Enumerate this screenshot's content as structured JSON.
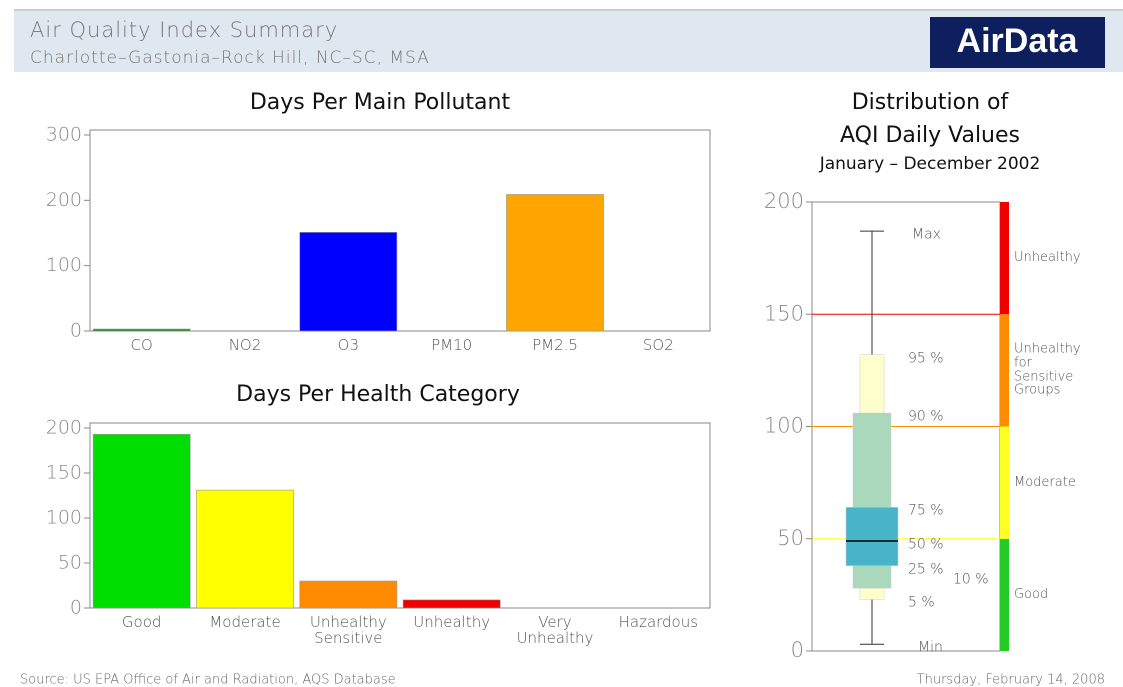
{
  "header": {
    "title": "Air Quality Index Summary",
    "subtitle": "Charlotte–Gastonia–Rock Hill, NC–SC, MSA",
    "logo": "AirData"
  },
  "footer": {
    "source": "Source: US EPA Office of Air and Radiation, AQS Database",
    "date": "Thursday, February 14, 2008"
  },
  "chart_data": [
    {
      "type": "bar",
      "title": "Days Per Main Pollutant",
      "categories": [
        "CO",
        "NO2",
        "O3",
        "PM10",
        "PM2.5",
        "SO2"
      ],
      "values": [
        3,
        0,
        151,
        0,
        209,
        0
      ],
      "colors": [
        "#1f8f1f",
        "#1f8f1f",
        "#0000ff",
        "#808080",
        "#ffa500",
        "#808080"
      ],
      "ylim": [
        0,
        300
      ],
      "yticks": [
        0,
        100,
        200,
        300
      ]
    },
    {
      "type": "bar",
      "title": "Days Per Health Category",
      "categories": [
        "Good",
        "Moderate",
        "Unhealthy\nSensitive",
        "Unhealthy",
        "Very\nUnhealthy",
        "Hazardous"
      ],
      "values": [
        193,
        131,
        30,
        9,
        0,
        0
      ],
      "colors": [
        "#00dd00",
        "#ffff00",
        "#ff8c00",
        "#ee0000",
        "#99004c",
        "#7e0023"
      ],
      "ylim": [
        0,
        200
      ],
      "yticks": [
        0,
        50,
        100,
        150,
        200
      ]
    },
    {
      "type": "box",
      "title": [
        "Distribution of",
        "AQI Daily Values"
      ],
      "subtitle": "January – December 2002",
      "ylim": [
        0,
        200
      ],
      "yticks": [
        0,
        50,
        100,
        150,
        200
      ],
      "stats": {
        "max": {
          "label": "Max",
          "value": 187
        },
        "p95": {
          "label": "95 %",
          "value": 132
        },
        "p90": {
          "label": "90 %",
          "value": 106
        },
        "p75": {
          "label": "75 %",
          "value": 64
        },
        "p50": {
          "label": "50 %",
          "value": 49
        },
        "p25": {
          "label": "25 %",
          "value": 38
        },
        "p10": {
          "label": "10 %",
          "value": 28
        },
        "p5": {
          "label": "5 %",
          "value": 23
        },
        "min": {
          "label": "Min",
          "value": 3
        }
      },
      "box_colors": {
        "outer": "#ffffcc",
        "middle": "#a9d8bc",
        "inner": "#47b4c9"
      },
      "bands": [
        {
          "name": "Good",
          "color": "#22cc22",
          "range": [
            0,
            50
          ]
        },
        {
          "name": "Moderate",
          "color": "#ffff22",
          "range": [
            50,
            100
          ]
        },
        {
          "name": "Unhealthy\nfor\nSensitive\nGroups",
          "color": "#ff8c00",
          "range": [
            100,
            150
          ]
        },
        {
          "name": "Unhealthy",
          "color": "#ee0000",
          "range": [
            150,
            200
          ]
        }
      ]
    }
  ]
}
